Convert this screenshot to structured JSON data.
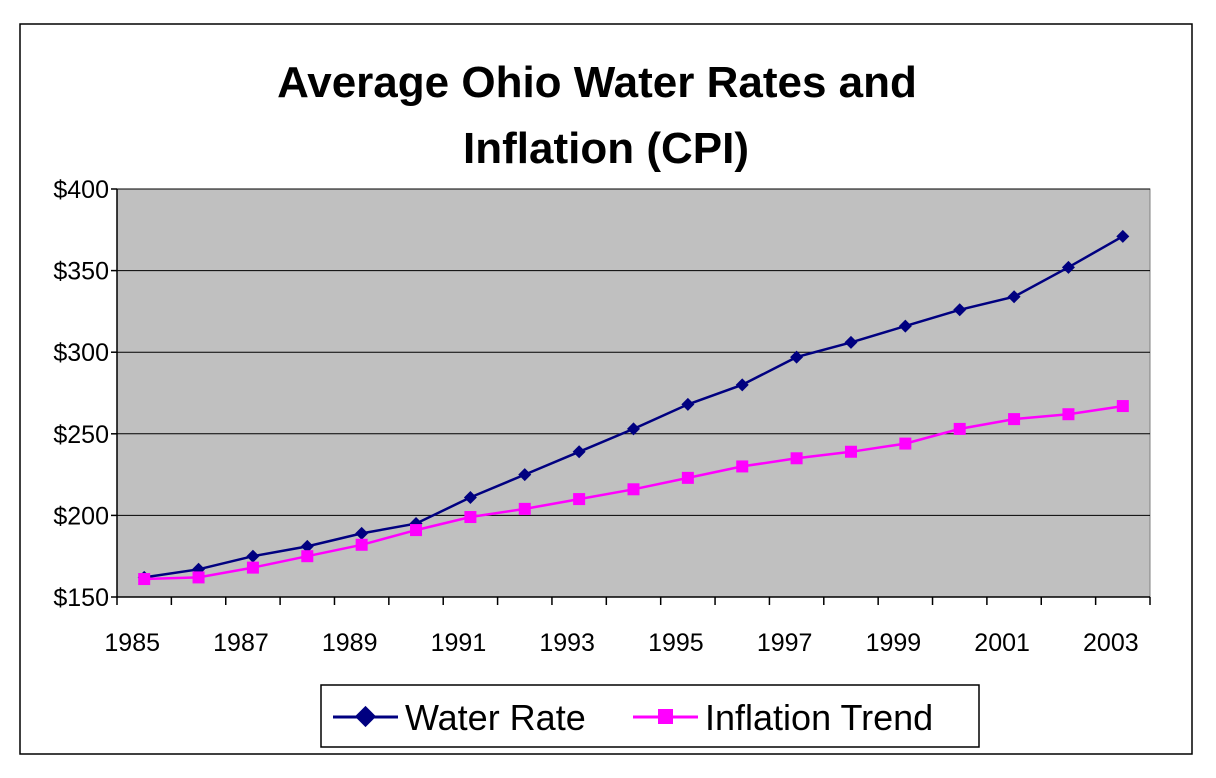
{
  "chart_data": {
    "type": "line",
    "title_lines": [
      "Average Ohio Water Rates and",
      "Inflation (CPI)"
    ],
    "xlabel": "",
    "ylabel": "",
    "x": [
      1985,
      1986,
      1987,
      1988,
      1989,
      1990,
      1991,
      1992,
      1993,
      1994,
      1995,
      1996,
      1997,
      1998,
      1999,
      2000,
      2001,
      2002,
      2003
    ],
    "x_tick_labels": [
      "1985",
      "1987",
      "1989",
      "1991",
      "1993",
      "1995",
      "1997",
      "1999",
      "2001",
      "2003"
    ],
    "ylim": [
      150,
      400
    ],
    "y_tick_values": [
      150,
      200,
      250,
      300,
      350,
      400
    ],
    "y_tick_labels": [
      "$150",
      "$200",
      "$250",
      "$300",
      "$350",
      "$400"
    ],
    "grid": true,
    "legend_position": "bottom",
    "plot_background": "#c0c0c0",
    "series": [
      {
        "name": "Water Rate",
        "color": "#000080",
        "marker": "diamond",
        "values": [
          162,
          167,
          175,
          181,
          189,
          195,
          211,
          225,
          239,
          253,
          268,
          280,
          297,
          306,
          316,
          326,
          334,
          352,
          371
        ]
      },
      {
        "name": "Inflation Trend",
        "color": "#ff00ff",
        "marker": "square",
        "values": [
          161,
          162,
          168,
          175,
          182,
          191,
          199,
          204,
          210,
          216,
          223,
          230,
          235,
          239,
          244,
          253,
          259,
          262,
          267
        ]
      }
    ]
  }
}
